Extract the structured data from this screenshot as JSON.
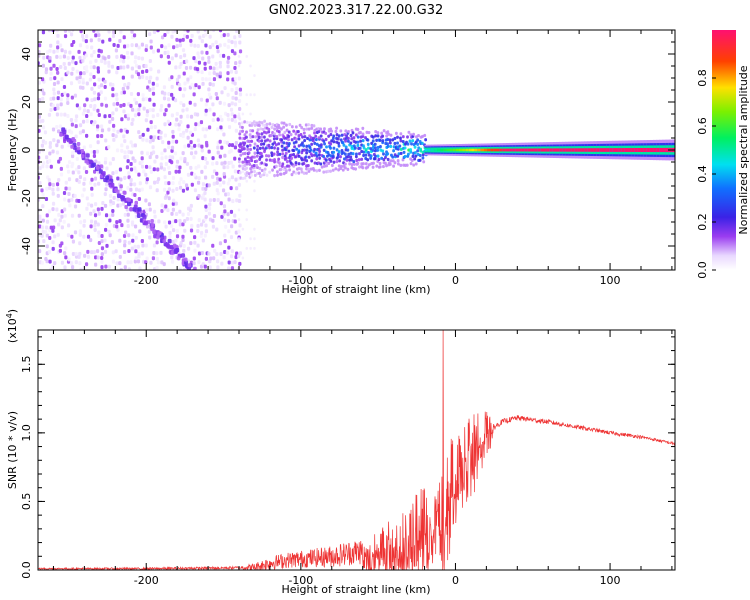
{
  "title": "GN02.2023.317.22.00.G32",
  "chart_data": [
    {
      "type": "heatmap",
      "title": "GN02.2023.317.22.00.G32",
      "xlabel": "Height of straight line (km)",
      "ylabel": "Frequency (Hz)",
      "xlim": [
        -270,
        142
      ],
      "ylim": [
        -50,
        50
      ],
      "x_ticks": [
        -200,
        -100,
        0,
        100
      ],
      "y_ticks": [
        -40,
        -20,
        0,
        20,
        40
      ],
      "colorbar": {
        "label": "Normalized spectral amplitude",
        "range": [
          0,
          1
        ],
        "ticks": [
          "0.0",
          "0.2",
          "0.4",
          "0.6",
          "0.8"
        ],
        "colormap": "rainbow (white-purple-blue-cyan-green-yellow-red-magenta)"
      },
      "features": [
        {
          "segment": "scattered noise",
          "x_range": [
            -270,
            -140
          ],
          "freq_range": [
            -50,
            50
          ],
          "amplitude": [
            0.0,
            0.15
          ]
        },
        {
          "segment": "diagonal streak",
          "x_start": -255,
          "freq_start": 8,
          "x_end": -170,
          "freq_end": -50,
          "amplitude": 0.15
        },
        {
          "segment": "carrier band",
          "x_range": [
            -140,
            -20
          ],
          "freq_center": 0,
          "band_halfwidth": [
            8,
            2
          ],
          "amplitude": [
            0.15,
            0.45
          ]
        },
        {
          "segment": "clean carrier",
          "x_range": [
            -20,
            142
          ],
          "freq_center": 0,
          "band_halfwidth": [
            1,
            2
          ],
          "amplitude": [
            0.45,
            1.0
          ]
        }
      ]
    },
    {
      "type": "line",
      "xlabel": "Height of straight line (km)",
      "ylabel": "SNR (10 * v/v)",
      "y_multiplier": "(x10^4)",
      "y_multiplier_base": "(x10",
      "y_multiplier_exp": "4",
      "y_multiplier_close": ")",
      "xlim": [
        -270,
        142
      ],
      "ylim": [
        0,
        1.75
      ],
      "x_ticks": [
        -200,
        -100,
        0,
        100
      ],
      "y_ticks": [
        "0.0",
        "0.5",
        "1.0",
        "1.5"
      ],
      "color": "#ee3333",
      "series": [
        {
          "x": [
            -270,
            -240,
            -200,
            -150,
            -130,
            -120,
            -110,
            -100,
            -90,
            -80,
            -70,
            -60,
            -50,
            -40,
            -30,
            -20,
            -15,
            -10,
            -5,
            0,
            10,
            20,
            30,
            40,
            60,
            80,
            100,
            120,
            142
          ],
          "y": [
            0.01,
            0.01,
            0.01,
            0.015,
            0.02,
            0.05,
            0.07,
            0.08,
            0.09,
            0.1,
            0.12,
            0.14,
            0.16,
            0.2,
            0.25,
            0.32,
            0.4,
            0.48,
            0.56,
            0.78,
            0.92,
            1.0,
            1.08,
            1.11,
            1.08,
            1.04,
            1.0,
            0.97,
            0.92
          ]
        }
      ],
      "noise_amplitude": [
        {
          "x": -270,
          "a": 0.005
        },
        {
          "x": -140,
          "a": 0.01
        },
        {
          "x": -120,
          "a": 0.05
        },
        {
          "x": -90,
          "a": 0.07
        },
        {
          "x": -60,
          "a": 0.1
        },
        {
          "x": -40,
          "a": 0.18
        },
        {
          "x": -20,
          "a": 0.32
        },
        {
          "x": -10,
          "a": 0.38
        },
        {
          "x": 0,
          "a": 0.3
        },
        {
          "x": 10,
          "a": 0.25
        },
        {
          "x": 20,
          "a": 0.18
        },
        {
          "x": 25,
          "a": 0.02
        },
        {
          "x": 142,
          "a": 0.01
        }
      ],
      "spike": {
        "x": -8,
        "y": 1.75
      }
    }
  ]
}
